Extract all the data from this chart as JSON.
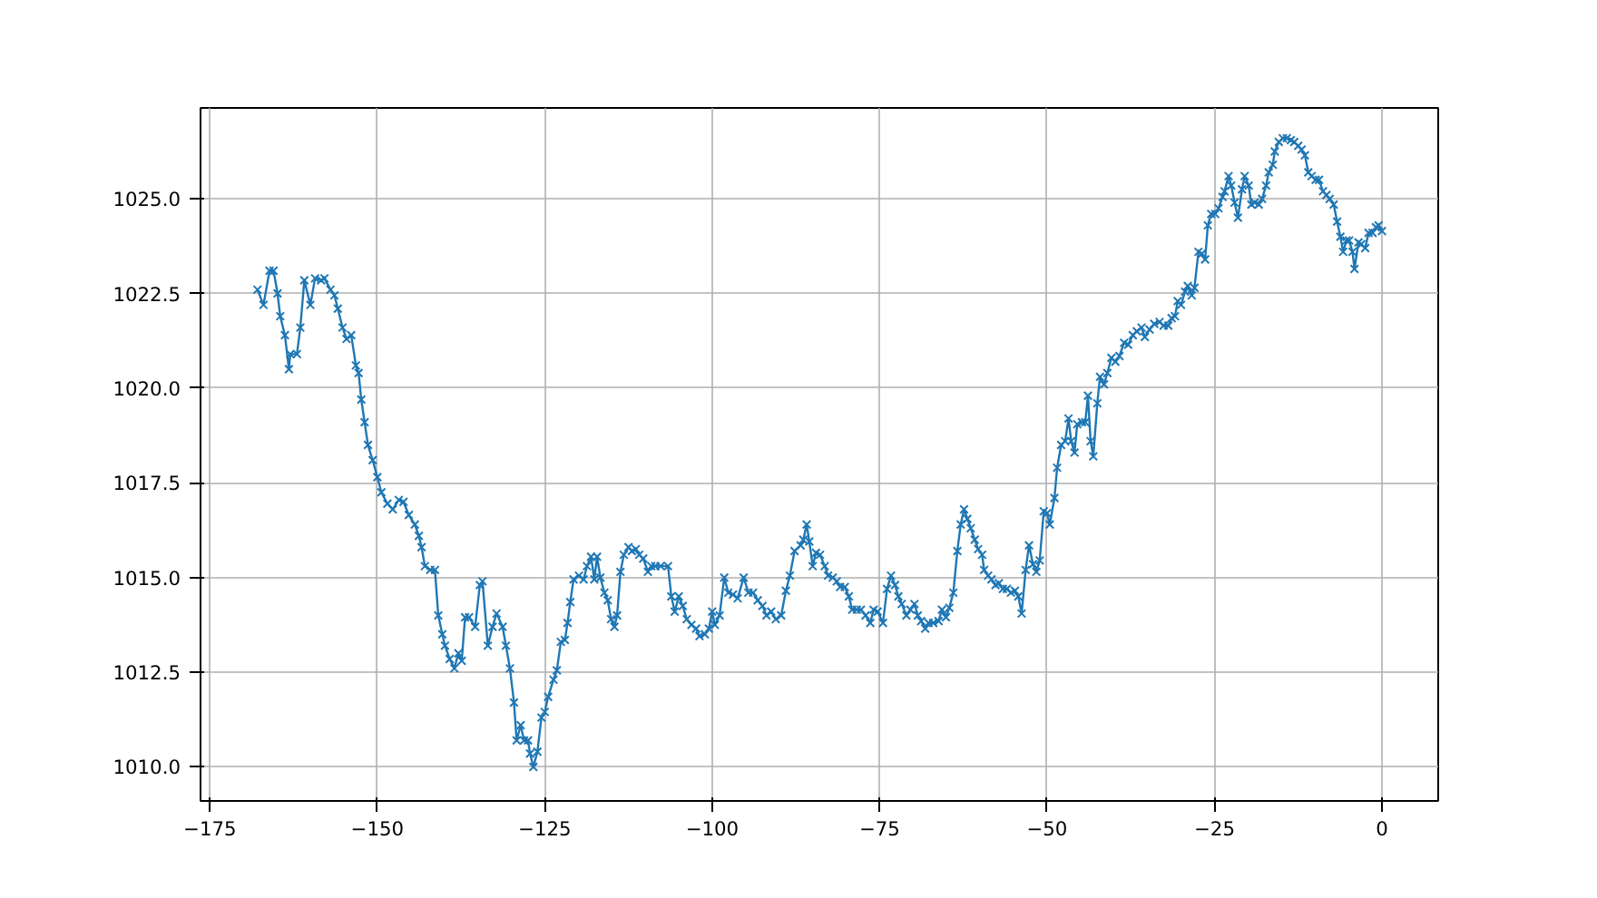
{
  "chart_data": {
    "type": "line",
    "marker": "cross",
    "line_style": "solid",
    "grid": true,
    "xlim": [
      -176.4,
      8.4
    ],
    "ylim": [
      1009.1,
      1027.4
    ],
    "xticks": [
      -175,
      -150,
      -125,
      -100,
      -75,
      -50,
      -25,
      0
    ],
    "yticks": [
      {
        "value": 1010,
        "label": "1010.0"
      },
      {
        "value": 1012.5,
        "label": "1012.5"
      },
      {
        "value": 1015,
        "label": "1015.0"
      },
      {
        "value": 1017.5,
        "label": "1017.5"
      },
      {
        "value": 1020,
        "label": "1020.0"
      },
      {
        "value": 1022.5,
        "label": "1022.5"
      },
      {
        "value": 1025,
        "label": "1025.0"
      }
    ],
    "series": [
      {
        "color": "#1f77b4",
        "x": [
          -167.9,
          -167,
          -166.1,
          -165.5,
          -164.9,
          -164.5,
          -163.8,
          -163.2,
          -163,
          -162,
          -161.5,
          -160.9,
          -160,
          -159.3,
          -158.4,
          -157.9,
          -157,
          -156.4,
          -155.9,
          -155.2,
          -154.6,
          -153.9,
          -153.2,
          -152.8,
          -152.4,
          -151.9,
          -151.4,
          -150.7,
          -150,
          -149.4,
          -148.5,
          -147.7,
          -146.8,
          -146.1,
          -145.3,
          -144.4,
          -143.8,
          -143.4,
          -142.9,
          -142.1,
          -141.4,
          -140.9,
          -140.3,
          -139.9,
          -139.2,
          -138.5,
          -137.9,
          -137.4,
          -136.9,
          -136.3,
          -135.4,
          -134.7,
          -134.3,
          -133.5,
          -132.8,
          -132.2,
          -131.3,
          -130.8,
          -130.2,
          -129.6,
          -129.2,
          -128.6,
          -128.1,
          -127.5,
          -127.2,
          -126.7,
          -126.1,
          -125.5,
          -125,
          -124.5,
          -123.7,
          -123.2,
          -122.6,
          -122,
          -121.6,
          -121.2,
          -120.7,
          -119.9,
          -119.2,
          -118.7,
          -118.1,
          -117.6,
          -117.2,
          -116.7,
          -116.1,
          -115.6,
          -115.1,
          -114.6,
          -114.2,
          -113.7,
          -113.2,
          -112.5,
          -112,
          -111.4,
          -110.9,
          -110.3,
          -109.6,
          -109.1,
          -108.5,
          -107.7,
          -106.6,
          -106.1,
          -105.6,
          -105,
          -104.4,
          -103.8,
          -103.1,
          -102.4,
          -101.9,
          -101.1,
          -100.5,
          -100,
          -99.6,
          -98.9,
          -98.2,
          -97.6,
          -96.9,
          -96.2,
          -95.3,
          -94.6,
          -93.9,
          -93.2,
          -92.5,
          -91.9,
          -91.2,
          -90.5,
          -89.7,
          -89,
          -88.4,
          -87.7,
          -86.8,
          -86.4,
          -85.9,
          -85.5,
          -85,
          -84.5,
          -83.9,
          -83.2,
          -82.7,
          -82,
          -81.4,
          -80.9,
          -80.2,
          -79.6,
          -79.1,
          -78.4,
          -77.8,
          -77.1,
          -76.4,
          -75.9,
          -75.3,
          -74.5,
          -73.9,
          -73.3,
          -72.7,
          -72.2,
          -71.7,
          -71,
          -70.4,
          -69.8,
          -69.3,
          -68.8,
          -68.2,
          -67.7,
          -67,
          -66.2,
          -65.7,
          -65.1,
          -64.6,
          -64,
          -63.4,
          -62.9,
          -62.4,
          -61.9,
          -61.4,
          -60.8,
          -60.3,
          -59.7,
          -59.4,
          -58.8,
          -58.3,
          -57.7,
          -57.2,
          -56.6,
          -56,
          -55.4,
          -54.8,
          -54.3,
          -53.8,
          -53.2,
          -52.7,
          -52.1,
          -51.6,
          -51.1,
          -50.5,
          -50,
          -49.6,
          -48.9,
          -48.5,
          -47.9,
          -47.3,
          -46.8,
          -46.4,
          -45.9,
          -45.5,
          -44.8,
          -44.3,
          -43.9,
          -43.5,
          -43.1,
          -42.5,
          -42.1,
          -41.5,
          -41,
          -40.4,
          -39.8,
          -39.2,
          -38.5,
          -37.9,
          -37.2,
          -36.6,
          -35.9,
          -35.4,
          -34.7,
          -34,
          -33.2,
          -32.6,
          -31.9,
          -31.4,
          -30.9,
          -30.5,
          -30,
          -29.4,
          -29,
          -28.4,
          -28,
          -27.4,
          -26.9,
          -26.4,
          -26,
          -25.5,
          -24.9,
          -24.4,
          -23.8,
          -23.5,
          -22.9,
          -22.5,
          -22,
          -21.5,
          -20.9,
          -20.5,
          -19.9,
          -19.5,
          -19,
          -18.4,
          -17.9,
          -17.3,
          -16.9,
          -16.3,
          -16,
          -15.4,
          -14.8,
          -14.2,
          -13.6,
          -13.1,
          -12.5,
          -12,
          -11.5,
          -11,
          -10.5,
          -9.9,
          -9.4,
          -8.8,
          -8.3,
          -7.8,
          -7.2,
          -6.7,
          -6.2,
          -5.8,
          -5.3,
          -4.9,
          -4.4,
          -4.1,
          -3.5,
          -3.1,
          -2.5,
          -2,
          -1.4,
          -0.9,
          -0.5,
          0
        ],
        "values": [
          1022.6,
          1022.2,
          1023.1,
          1023.1,
          1022.5,
          1021.9,
          1021.4,
          1020.5,
          1020.9,
          1020.9,
          1021.6,
          1022.85,
          1022.2,
          1022.9,
          1022.85,
          1022.9,
          1022.6,
          1022.45,
          1022.1,
          1021.6,
          1021.3,
          1021.4,
          1020.6,
          1020.4,
          1019.7,
          1019.1,
          1018.5,
          1018.1,
          1017.65,
          1017.25,
          1016.95,
          1016.8,
          1017.05,
          1017.0,
          1016.65,
          1016.4,
          1016.1,
          1015.8,
          1015.3,
          1015.2,
          1015.2,
          1014.0,
          1013.5,
          1013.2,
          1012.85,
          1012.6,
          1013.0,
          1012.8,
          1013.95,
          1013.95,
          1013.7,
          1014.8,
          1014.9,
          1013.2,
          1013.7,
          1014.05,
          1013.7,
          1013.2,
          1012.6,
          1011.7,
          1010.7,
          1011.1,
          1010.7,
          1010.7,
          1010.35,
          1010.0,
          1010.4,
          1011.3,
          1011.45,
          1011.85,
          1012.3,
          1012.55,
          1013.3,
          1013.35,
          1013.8,
          1014.35,
          1014.95,
          1015.05,
          1014.95,
          1015.3,
          1015.55,
          1014.95,
          1015.55,
          1015.0,
          1014.6,
          1014.4,
          1013.9,
          1013.7,
          1014.0,
          1015.15,
          1015.6,
          1015.8,
          1015.7,
          1015.75,
          1015.6,
          1015.5,
          1015.15,
          1015.3,
          1015.3,
          1015.3,
          1015.3,
          1014.5,
          1014.1,
          1014.5,
          1014.25,
          1013.9,
          1013.75,
          1013.65,
          1013.45,
          1013.5,
          1013.65,
          1014.1,
          1013.75,
          1014.0,
          1015.0,
          1014.6,
          1014.55,
          1014.45,
          1015.0,
          1014.6,
          1014.6,
          1014.4,
          1014.25,
          1014.0,
          1014.1,
          1013.9,
          1014.0,
          1014.65,
          1015.05,
          1015.7,
          1015.85,
          1016.0,
          1016.4,
          1015.95,
          1015.3,
          1015.65,
          1015.6,
          1015.3,
          1015.05,
          1015.0,
          1014.9,
          1014.75,
          1014.75,
          1014.5,
          1014.15,
          1014.15,
          1014.15,
          1014.0,
          1013.8,
          1014.15,
          1014.1,
          1013.8,
          1014.7,
          1015.05,
          1014.8,
          1014.5,
          1014.3,
          1014.0,
          1014.15,
          1014.3,
          1014.0,
          1013.85,
          1013.65,
          1013.8,
          1013.8,
          1013.85,
          1014.15,
          1013.95,
          1014.2,
          1014.6,
          1015.7,
          1016.4,
          1016.8,
          1016.55,
          1016.3,
          1016.0,
          1015.75,
          1015.6,
          1015.2,
          1015.05,
          1014.95,
          1014.8,
          1014.85,
          1014.7,
          1014.7,
          1014.6,
          1014.65,
          1014.5,
          1014.05,
          1015.2,
          1015.85,
          1015.35,
          1015.15,
          1015.45,
          1016.75,
          1016.7,
          1016.4,
          1017.1,
          1017.9,
          1018.5,
          1018.6,
          1019.2,
          1018.6,
          1018.3,
          1019.05,
          1019.1,
          1019.1,
          1019.8,
          1018.6,
          1018.2,
          1019.6,
          1020.3,
          1020.1,
          1020.4,
          1020.8,
          1020.7,
          1020.85,
          1021.2,
          1021.15,
          1021.4,
          1021.5,
          1021.6,
          1021.35,
          1021.55,
          1021.7,
          1021.75,
          1021.65,
          1021.65,
          1021.85,
          1021.9,
          1022.3,
          1022.2,
          1022.55,
          1022.7,
          1022.45,
          1022.65,
          1023.6,
          1023.55,
          1023.4,
          1024.3,
          1024.6,
          1024.6,
          1024.75,
          1025.05,
          1025.2,
          1025.6,
          1025.35,
          1024.9,
          1024.5,
          1025.25,
          1025.6,
          1025.35,
          1024.85,
          1024.9,
          1024.85,
          1025.0,
          1025.35,
          1025.7,
          1025.9,
          1026.25,
          1026.5,
          1026.6,
          1026.6,
          1026.55,
          1026.5,
          1026.4,
          1026.3,
          1026.15,
          1025.7,
          1025.6,
          1025.5,
          1025.5,
          1025.2,
          1025.1,
          1025.0,
          1024.85,
          1024.4,
          1024.0,
          1023.6,
          1023.9,
          1023.9,
          1023.6,
          1023.15,
          1023.85,
          1023.8,
          1023.7,
          1024.1,
          1024.1,
          1024.25,
          1024.3,
          1024.15
        ]
      }
    ]
  }
}
